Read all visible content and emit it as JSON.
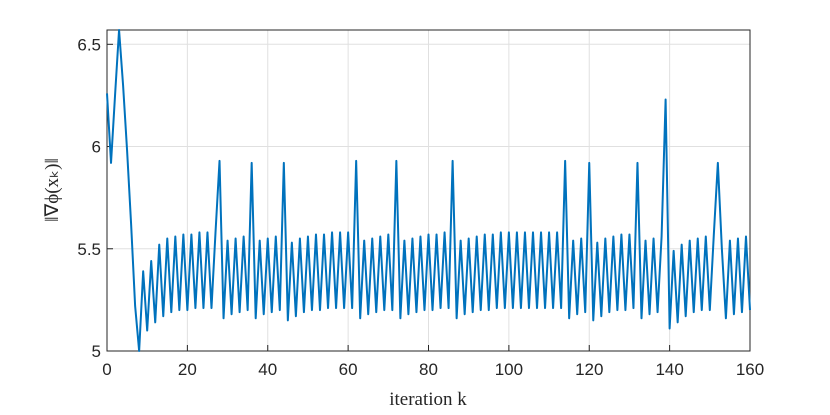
{
  "chart_data": {
    "type": "line",
    "xlabel": "iteration k",
    "ylabel": "‖∇ϕ(xₖ)‖",
    "x": [
      0,
      1,
      2,
      3,
      4,
      5,
      6,
      7,
      8,
      9,
      10,
      11,
      12,
      13,
      14,
      15,
      16,
      17,
      18,
      19,
      20,
      21,
      22,
      23,
      24,
      25,
      26,
      27,
      28,
      29,
      30,
      31,
      32,
      33,
      34,
      35,
      36,
      37,
      38,
      39,
      40,
      41,
      42,
      43,
      44,
      45,
      46,
      47,
      48,
      49,
      50,
      51,
      52,
      53,
      54,
      55,
      56,
      57,
      58,
      59,
      60,
      61,
      62,
      63,
      64,
      65,
      66,
      67,
      68,
      69,
      70,
      71,
      72,
      73,
      74,
      75,
      76,
      77,
      78,
      79,
      80,
      81,
      82,
      83,
      84,
      85,
      86,
      87,
      88,
      89,
      90,
      91,
      92,
      93,
      94,
      95,
      96,
      97,
      98,
      99,
      100,
      101,
      102,
      103,
      104,
      105,
      106,
      107,
      108,
      109,
      110,
      111,
      112,
      113,
      114,
      115,
      116,
      117,
      118,
      119,
      120,
      121,
      122,
      123,
      124,
      125,
      126,
      127,
      128,
      129,
      130,
      131,
      132,
      133,
      134,
      135,
      136,
      137,
      138,
      139,
      140,
      141,
      142,
      143,
      144,
      145,
      146,
      147,
      148,
      149,
      150,
      151,
      152,
      153,
      154,
      155,
      156,
      157,
      158,
      159,
      160
    ],
    "series": [
      {
        "color": "#0072bd",
        "values": [
          6.26,
          5.92,
          6.25,
          6.57,
          6.3,
          5.98,
          5.62,
          5.22,
          5.0,
          5.39,
          5.1,
          5.44,
          5.14,
          5.52,
          5.17,
          5.55,
          5.19,
          5.56,
          5.2,
          5.57,
          5.2,
          5.57,
          5.21,
          5.58,
          5.21,
          5.58,
          5.21,
          5.58,
          5.93,
          5.16,
          5.54,
          5.18,
          5.55,
          5.19,
          5.56,
          5.2,
          5.92,
          5.16,
          5.54,
          5.18,
          5.55,
          5.19,
          5.56,
          5.2,
          5.92,
          5.15,
          5.53,
          5.17,
          5.55,
          5.19,
          5.56,
          5.2,
          5.57,
          5.2,
          5.57,
          5.21,
          5.58,
          5.21,
          5.58,
          5.21,
          5.58,
          5.21,
          5.93,
          5.16,
          5.54,
          5.18,
          5.55,
          5.19,
          5.56,
          5.2,
          5.57,
          5.2,
          5.93,
          5.16,
          5.54,
          5.18,
          5.55,
          5.19,
          5.56,
          5.2,
          5.57,
          5.2,
          5.57,
          5.21,
          5.58,
          5.21,
          5.93,
          5.16,
          5.54,
          5.18,
          5.55,
          5.19,
          5.56,
          5.2,
          5.57,
          5.2,
          5.57,
          5.21,
          5.58,
          5.21,
          5.58,
          5.21,
          5.58,
          5.21,
          5.58,
          5.21,
          5.58,
          5.21,
          5.58,
          5.21,
          5.58,
          5.21,
          5.58,
          5.21,
          5.93,
          5.16,
          5.54,
          5.18,
          5.55,
          5.19,
          5.92,
          5.15,
          5.53,
          5.17,
          5.55,
          5.19,
          5.56,
          5.2,
          5.57,
          5.2,
          5.57,
          5.21,
          5.92,
          5.16,
          5.54,
          5.18,
          5.55,
          5.19,
          5.56,
          6.23,
          5.11,
          5.49,
          5.14,
          5.52,
          5.17,
          5.54,
          5.19,
          5.55,
          5.2,
          5.56,
          5.2,
          5.57,
          5.92,
          5.5,
          5.16,
          5.54,
          5.18,
          5.55,
          5.19,
          5.56,
          5.2
        ]
      }
    ],
    "xlim": [
      0,
      160
    ],
    "xticks": [
      0,
      20,
      40,
      60,
      80,
      100,
      120,
      140,
      160
    ],
    "ylim": [
      5,
      6.57
    ],
    "yticks": [
      5,
      5.5,
      6,
      6.5
    ],
    "grid": true
  }
}
